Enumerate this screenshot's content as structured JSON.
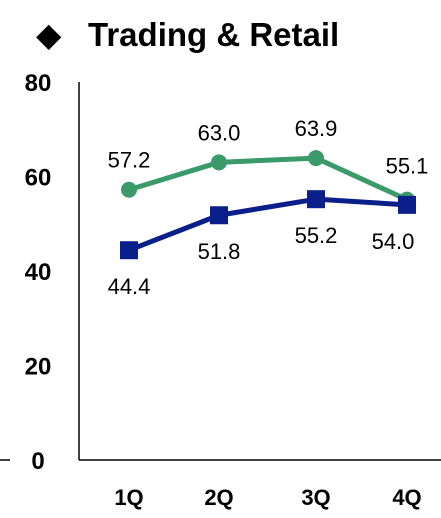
{
  "title": "Trading & Retail",
  "title_marker": "◆",
  "chart_data": {
    "type": "line",
    "title": "Trading & Retail",
    "categories": [
      "1Q",
      "2Q",
      "3Q",
      "4Q"
    ],
    "ylim": [
      0,
      80
    ],
    "y_ticks": [
      0,
      20,
      40,
      60,
      80
    ],
    "grid": false,
    "series": [
      {
        "values": [
          57.2,
          63.0,
          63.9,
          55.1
        ],
        "labels": [
          "57.2",
          "63.0",
          "63.9",
          "55.1"
        ],
        "color": "#3a9a6a",
        "marker": "circle"
      },
      {
        "values": [
          44.4,
          51.8,
          55.2,
          54.0
        ],
        "labels": [
          "44.4",
          "51.8",
          "55.2",
          "54.0"
        ],
        "color": "#0a1f8a",
        "marker": "square"
      }
    ]
  }
}
